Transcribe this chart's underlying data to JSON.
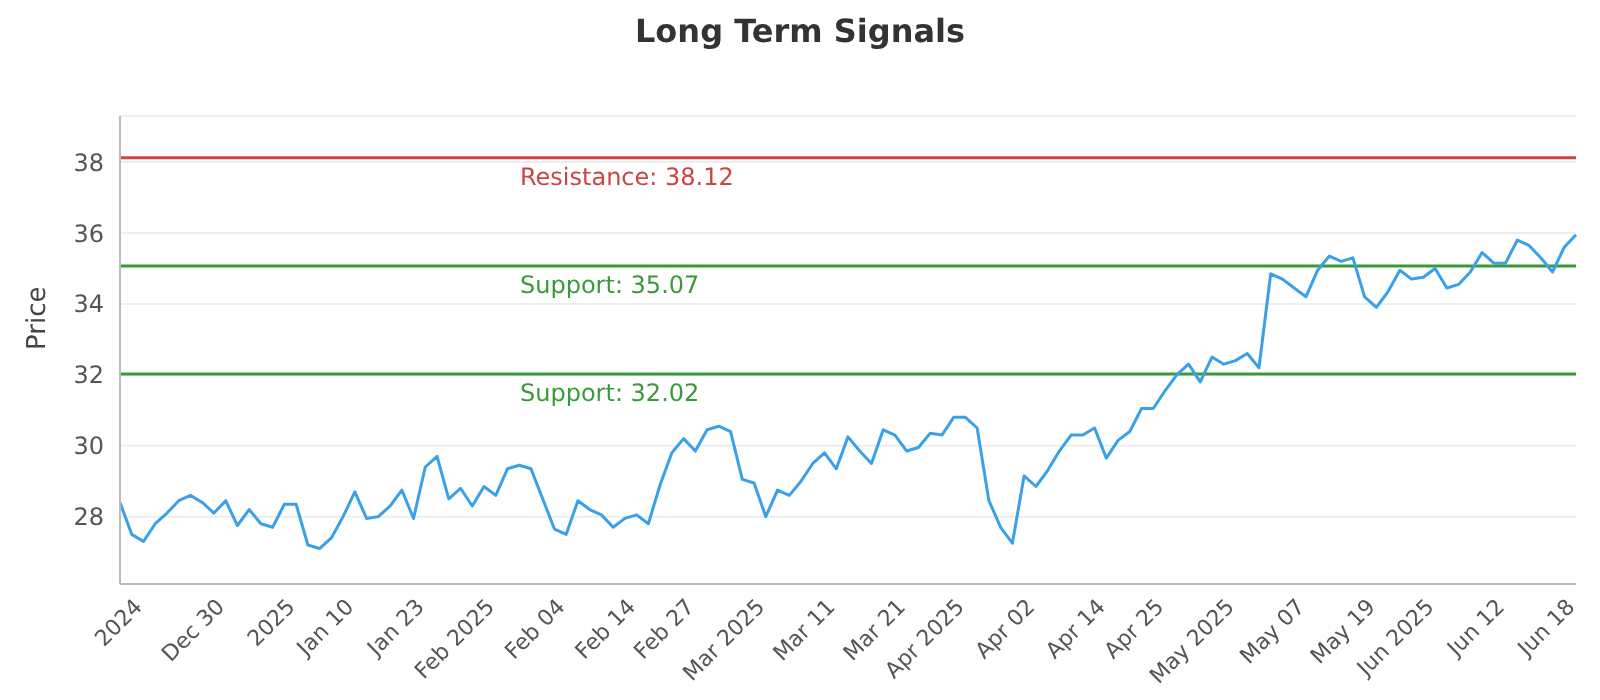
{
  "chart_data": {
    "type": "line",
    "title": "Long Term Signals",
    "ylabel": "Price",
    "categories": [
      null,
      null,
      "2024",
      null,
      null,
      null,
      null,
      null,
      null,
      "Dec 30",
      null,
      null,
      null,
      null,
      null,
      "2025",
      null,
      null,
      null,
      null,
      "Jan 10",
      null,
      null,
      null,
      null,
      null,
      "Jan 23",
      null,
      null,
      null,
      null,
      null,
      "Feb 2025",
      null,
      null,
      null,
      null,
      null,
      "Feb 04",
      null,
      null,
      null,
      null,
      null,
      "Feb 14",
      null,
      null,
      null,
      null,
      "Feb 27",
      null,
      null,
      null,
      null,
      null,
      "Mar 2025",
      null,
      null,
      null,
      null,
      null,
      "Mar 11",
      null,
      null,
      null,
      null,
      null,
      "Mar 21",
      null,
      null,
      null,
      null,
      "Apr 2025",
      null,
      null,
      null,
      null,
      null,
      "Apr 02",
      null,
      null,
      null,
      null,
      null,
      "Apr 14",
      null,
      null,
      null,
      null,
      "Apr 25",
      null,
      null,
      null,
      null,
      null,
      "May 2025",
      null,
      null,
      null,
      null,
      null,
      "May 07",
      null,
      null,
      null,
      null,
      null,
      "May 19",
      null,
      null,
      null,
      null,
      "Jun 2025",
      null,
      null,
      null,
      null,
      null,
      "Jun 12",
      null,
      null,
      null,
      null,
      null,
      "Jun 18"
    ],
    "series": [
      {
        "color": "#3aa0e8",
        "values": [
          28.4,
          27.5,
          27.3,
          27.8,
          28.1,
          28.45,
          28.6,
          28.4,
          28.1,
          28.45,
          27.75,
          28.2,
          27.8,
          27.7,
          28.35,
          28.35,
          27.2,
          27.1,
          27.4,
          28.0,
          28.7,
          27.95,
          28.0,
          28.3,
          28.75,
          27.95,
          29.4,
          29.7,
          28.5,
          28.8,
          28.3,
          28.85,
          28.6,
          29.35,
          29.45,
          29.35,
          28.5,
          27.65,
          27.5,
          28.45,
          28.2,
          28.05,
          27.7,
          27.95,
          28.05,
          27.8,
          28.9,
          29.8,
          30.2,
          29.85,
          30.45,
          30.55,
          30.4,
          29.05,
          28.95,
          28.0,
          28.75,
          28.6,
          29.0,
          29.5,
          29.8,
          29.35,
          30.25,
          29.85,
          29.5,
          30.45,
          30.3,
          29.85,
          29.95,
          30.35,
          30.3,
          30.8,
          30.8,
          30.5,
          28.45,
          27.7,
          27.25,
          29.15,
          28.85,
          29.3,
          29.85,
          30.3,
          30.3,
          30.5,
          29.65,
          30.15,
          30.4,
          31.05,
          31.05,
          31.55,
          32.0,
          32.3,
          31.8,
          32.5,
          32.3,
          32.4,
          32.6,
          32.2,
          34.85,
          34.7,
          34.45,
          34.2,
          34.95,
          35.35,
          35.2,
          35.3,
          34.2,
          33.9,
          34.35,
          34.95,
          34.7,
          34.75,
          35.0,
          34.45,
          34.55,
          34.9,
          35.45,
          35.15,
          35.15,
          35.8,
          35.65,
          35.3,
          34.9,
          35.6,
          35.95
        ]
      }
    ],
    "ylim": [
      26.1,
      39.3
    ],
    "yticks": [
      28,
      30,
      32,
      34,
      36,
      38
    ],
    "grid": "y",
    "legend": false,
    "marker": "none",
    "line_style": "solid",
    "ref_lines": [
      {
        "axis": "y",
        "value": 38.12,
        "label": "Resistance: 38.12",
        "color": "#cc4444"
      },
      {
        "axis": "y",
        "value": 35.07,
        "label": "Support: 35.07",
        "color": "#3a9a3a"
      },
      {
        "axis": "y",
        "value": 32.02,
        "label": "Support: 32.02",
        "color": "#3a9a3a"
      }
    ]
  }
}
